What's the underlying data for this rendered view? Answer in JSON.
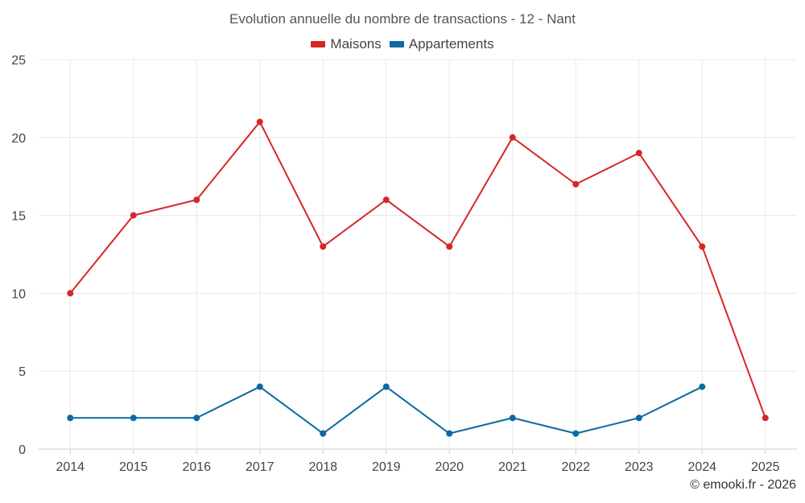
{
  "chart_data": {
    "type": "line",
    "title": "Evolution annuelle du nombre de transactions - 12 - Nant",
    "categories": [
      "2014",
      "2015",
      "2016",
      "2017",
      "2018",
      "2019",
      "2020",
      "2021",
      "2022",
      "2023",
      "2024",
      "2025"
    ],
    "series": [
      {
        "name": "Maisons",
        "color": "#d62728",
        "values": [
          10,
          15,
          16,
          21,
          13,
          16,
          13,
          20,
          17,
          19,
          13,
          2
        ]
      },
      {
        "name": "Appartements",
        "color": "#0b6aa2",
        "values": [
          2,
          2,
          2,
          4,
          1,
          4,
          1,
          2,
          1,
          2,
          4,
          null
        ]
      }
    ],
    "ylim": [
      0,
      25
    ],
    "yticks": [
      0,
      5,
      10,
      15,
      20,
      25
    ],
    "xlabel": "",
    "ylabel": "",
    "grid": true,
    "legend_position": "top-center"
  },
  "credit": "© emooki.fr - 2026",
  "colors": {
    "grid": "#e8e8e8",
    "axis": "#cccccc"
  }
}
